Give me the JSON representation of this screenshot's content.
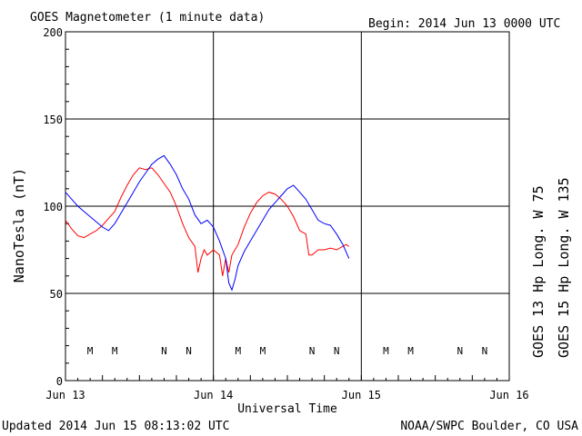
{
  "header": {
    "title": "GOES Magnetometer (1 minute data)",
    "begin": "Begin:  2014 Jun 13 0000 UTC"
  },
  "footer": {
    "updated": "Updated 2014 Jun 15 08:13:02 UTC",
    "credit": "NOAA/SWPC Boulder, CO USA"
  },
  "colors": {
    "goes13": "#ff0000",
    "goes15": "#0000ff",
    "grid": "#000000"
  },
  "chart_data": {
    "type": "line",
    "title": "GOES Magnetometer (1 minute data)",
    "xlabel": "Universal Time",
    "ylabel": "NanoTesla (nT)",
    "ylim": [
      0,
      200
    ],
    "xlim": [
      0,
      72
    ],
    "x_unit": "hours since 2014 Jun 13 0000 UTC",
    "yticks": [
      0,
      50,
      100,
      150,
      200
    ],
    "xticks": [
      {
        "x": 0,
        "label": "Jun 13"
      },
      {
        "x": 24,
        "label": "Jun 14"
      },
      {
        "x": 48,
        "label": "Jun 15"
      },
      {
        "x": 72,
        "label": "Jun 16"
      }
    ],
    "grid": true,
    "series": [
      {
        "name": "GOES 13 Hp  Long. W 75",
        "color": "#ff0000",
        "points": [
          [
            0,
            92
          ],
          [
            1,
            87
          ],
          [
            2,
            83
          ],
          [
            3,
            82
          ],
          [
            4,
            84
          ],
          [
            5,
            86
          ],
          [
            6,
            89
          ],
          [
            7,
            93
          ],
          [
            8,
            97
          ],
          [
            9,
            105
          ],
          [
            10,
            112
          ],
          [
            11,
            118
          ],
          [
            12,
            122
          ],
          [
            13,
            121
          ],
          [
            14,
            122
          ],
          [
            15,
            118
          ],
          [
            16,
            113
          ],
          [
            17,
            108
          ],
          [
            18,
            100
          ],
          [
            19,
            90
          ],
          [
            20,
            82
          ],
          [
            21,
            77
          ],
          [
            21.5,
            62
          ],
          [
            22,
            70
          ],
          [
            22.5,
            75
          ],
          [
            23,
            72
          ],
          [
            24,
            75
          ],
          [
            25,
            72
          ],
          [
            25.5,
            60
          ],
          [
            26,
            70
          ],
          [
            26.5,
            62
          ],
          [
            27,
            72
          ],
          [
            28,
            78
          ],
          [
            29,
            88
          ],
          [
            30,
            96
          ],
          [
            31,
            102
          ],
          [
            32,
            106
          ],
          [
            33,
            108
          ],
          [
            34,
            107
          ],
          [
            35,
            104
          ],
          [
            36,
            100
          ],
          [
            37,
            94
          ],
          [
            38,
            86
          ],
          [
            39,
            84
          ],
          [
            39.5,
            72
          ],
          [
            40,
            72
          ],
          [
            41,
            75
          ],
          [
            42,
            75
          ],
          [
            43,
            76
          ],
          [
            44,
            75
          ],
          [
            45,
            77
          ],
          [
            45.5,
            78
          ],
          [
            46,
            77
          ]
        ]
      },
      {
        "name": "GOES 15 Hp  Long. W 135",
        "color": "#0000ff",
        "points": [
          [
            0,
            108
          ],
          [
            1,
            104
          ],
          [
            2,
            100
          ],
          [
            3,
            97
          ],
          [
            4,
            94
          ],
          [
            5,
            91
          ],
          [
            6,
            88
          ],
          [
            7,
            86
          ],
          [
            8,
            90
          ],
          [
            9,
            96
          ],
          [
            10,
            102
          ],
          [
            11,
            108
          ],
          [
            12,
            114
          ],
          [
            13,
            119
          ],
          [
            14,
            124
          ],
          [
            15,
            127
          ],
          [
            16,
            129
          ],
          [
            17,
            124
          ],
          [
            18,
            118
          ],
          [
            19,
            110
          ],
          [
            20,
            104
          ],
          [
            21,
            95
          ],
          [
            22,
            90
          ],
          [
            23,
            92
          ],
          [
            24,
            88
          ],
          [
            25,
            80
          ],
          [
            26,
            70
          ],
          [
            26.5,
            56
          ],
          [
            27,
            52
          ],
          [
            27.5,
            58
          ],
          [
            28,
            66
          ],
          [
            29,
            74
          ],
          [
            30,
            80
          ],
          [
            31,
            86
          ],
          [
            32,
            92
          ],
          [
            33,
            98
          ],
          [
            34,
            102
          ],
          [
            35,
            106
          ],
          [
            36,
            110
          ],
          [
            37,
            112
          ],
          [
            38,
            108
          ],
          [
            39,
            104
          ],
          [
            40,
            98
          ],
          [
            41,
            92
          ],
          [
            42,
            90
          ],
          [
            43,
            89
          ],
          [
            44,
            84
          ],
          [
            45,
            78
          ],
          [
            46,
            70
          ]
        ]
      }
    ],
    "annotations": [
      {
        "x": 4,
        "label": "M",
        "color": "#ff0000"
      },
      {
        "x": 8,
        "label": "M",
        "color": "#0000ff"
      },
      {
        "x": 16,
        "label": "N",
        "color": "#ff0000"
      },
      {
        "x": 20,
        "label": "N",
        "color": "#0000ff"
      },
      {
        "x": 28,
        "label": "M",
        "color": "#ff0000"
      },
      {
        "x": 32,
        "label": "M",
        "color": "#0000ff"
      },
      {
        "x": 40,
        "label": "N",
        "color": "#ff0000"
      },
      {
        "x": 44,
        "label": "N",
        "color": "#0000ff"
      },
      {
        "x": 52,
        "label": "M",
        "color": "#ff0000"
      },
      {
        "x": 56,
        "label": "M",
        "color": "#0000ff"
      },
      {
        "x": 64,
        "label": "N",
        "color": "#ff0000"
      },
      {
        "x": 68,
        "label": "N",
        "color": "#0000ff"
      }
    ]
  }
}
